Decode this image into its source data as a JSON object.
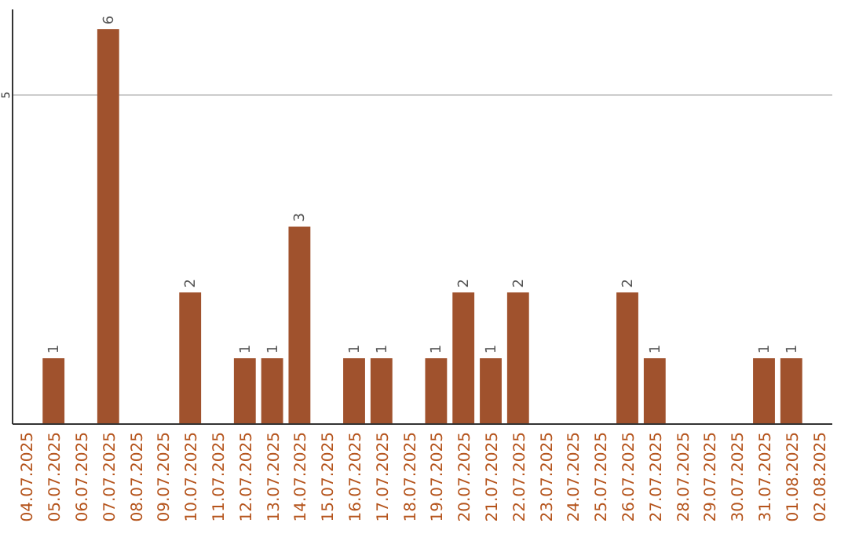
{
  "chart_data": {
    "type": "bar",
    "categories": [
      "04.07.2025",
      "05.07.2025",
      "06.07.2025",
      "07.07.2025",
      "08.07.2025",
      "09.07.2025",
      "10.07.2025",
      "11.07.2025",
      "12.07.2025",
      "13.07.2025",
      "14.07.2025",
      "15.07.2025",
      "16.07.2025",
      "17.07.2025",
      "18.07.2025",
      "19.07.2025",
      "20.07.2025",
      "21.07.2025",
      "22.07.2025",
      "23.07.2025",
      "24.07.2025",
      "25.07.2025",
      "26.07.2025",
      "27.07.2025",
      "28.07.2025",
      "29.07.2025",
      "30.07.2025",
      "31.07.2025",
      "01.08.2025",
      "02.08.2025"
    ],
    "values": [
      0,
      1,
      0,
      6,
      0,
      0,
      2,
      0,
      1,
      1,
      3,
      0,
      1,
      1,
      0,
      1,
      2,
      1,
      2,
      0,
      0,
      0,
      2,
      1,
      0,
      0,
      0,
      1,
      1,
      0
    ],
    "value_labels": [
      null,
      "1",
      null,
      "6",
      null,
      null,
      "2",
      null,
      "1",
      "1",
      "3",
      null,
      "1",
      "1",
      null,
      "1",
      "2",
      "1",
      "2",
      null,
      null,
      null,
      "2",
      "1",
      null,
      null,
      null,
      "1",
      "1",
      null
    ],
    "color": "#a0522d",
    "ylim": [
      0,
      6.3
    ],
    "yticks": [
      5
    ],
    "grid": "y"
  }
}
